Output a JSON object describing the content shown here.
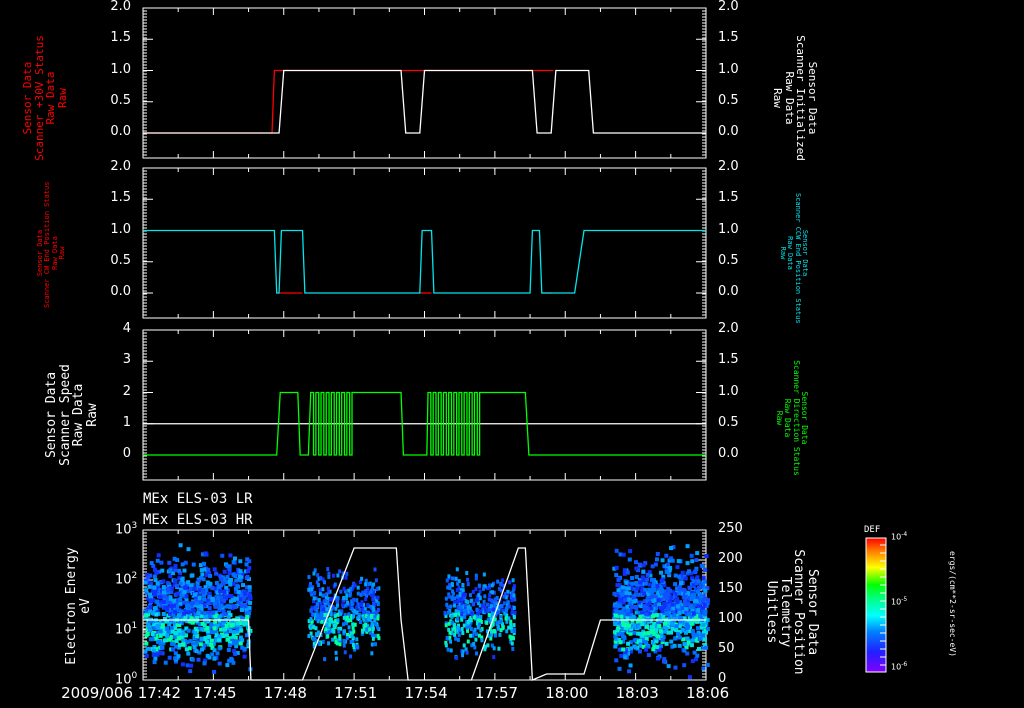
{
  "chart_data": [
    {
      "type": "line",
      "panel": 1,
      "left_ylabel": "Sensor Data\nScanner +30V Status\nRaw Data\nRaw",
      "left_ylabel_color": "#ff0000",
      "right_ylabel": "Sensor Data\nScanner Initialized\nRaw Data\nRaw",
      "right_ylabel_color": "#ffffff",
      "left_ylim": [
        -0.4,
        2.0
      ],
      "right_ylim": [
        -0.4,
        2.0
      ],
      "left_ticks": [
        "2.0",
        "1.5",
        "1.0",
        "0.5",
        "0.0"
      ],
      "right_ticks": [
        "2.0",
        "1.5",
        "1.0",
        "0.5",
        "0.0"
      ],
      "series": [
        {
          "name": "Scanner +30V Status",
          "color": "#ff0000",
          "x": [
            "17:42",
            "17:47.5",
            "17:47.6",
            "17:53.1",
            "17:53.8",
            "17:58.7",
            "17:59.5"
          ],
          "values": [
            0,
            0,
            1,
            1,
            1,
            1,
            1
          ]
        },
        {
          "name": "Scanner Initialized",
          "color": "#ffffff",
          "x": [
            "17:42",
            "17:47.8",
            "17:48.0",
            "17:53.0",
            "17:53.2",
            "17:53.8",
            "17:54.0",
            "17:58.6",
            "17:58.8",
            "17:59.4",
            "17:59.6",
            "18:01.0",
            "18:01.2",
            "18:06"
          ],
          "values": [
            0,
            0,
            1,
            1,
            0,
            0,
            1,
            1,
            0,
            0,
            1,
            1,
            0,
            0
          ]
        }
      ]
    },
    {
      "type": "line",
      "panel": 2,
      "left_ylabel": "Sensor Data\nScanner CW End Position Status\nRaw Data\nRaw",
      "left_ylabel_color": "#ff0000",
      "right_ylabel": "Sensor Data\nScanner CCW End Position Status\nRaw Data\nRaw",
      "right_ylabel_color": "#00e5ee",
      "left_ylim": [
        -0.4,
        2.0
      ],
      "right_ylim": [
        -0.4,
        2.0
      ],
      "left_ticks": [
        "2.0",
        "1.5",
        "1.0",
        "0.5",
        "0.0"
      ],
      "right_ticks": [
        "2.0",
        "1.5",
        "1.0",
        "0.5",
        "0.0"
      ],
      "series": [
        {
          "name": "Scanner CW End Position Status",
          "color": "#ff0000",
          "x": [
            "17:47.8",
            "17:48.8",
            "17:53.8",
            "17:54.3",
            "17:59.0",
            "17:59.4"
          ],
          "values": [
            0,
            0,
            0,
            0,
            0,
            0
          ]
        },
        {
          "name": "Scanner CCW End Position Status",
          "color": "#00e5ee",
          "x": [
            "17:42",
            "17:47.6",
            "17:47.7",
            "17:47.8",
            "17:47.9",
            "17:48.8",
            "17:48.9",
            "17:53.8",
            "17:53.9",
            "17:54.3",
            "17:54.4",
            "17:58.5",
            "17:58.6",
            "17:58.9",
            "17:59.0",
            "18:00.4",
            "18:00.8",
            "18:06"
          ],
          "values": [
            1,
            1,
            0,
            0,
            1,
            1,
            0,
            0,
            1,
            1,
            0,
            0,
            1,
            1,
            0,
            0,
            1,
            1
          ]
        }
      ]
    },
    {
      "type": "line",
      "panel": 3,
      "left_ylabel": "Sensor Data\nScanner Speed\nRaw Data\nRaw",
      "left_ylabel_color": "#ffffff",
      "right_ylabel": "Sensor Data\nScanner Direction Status\nRaw Data\nRaw",
      "right_ylabel_color": "#00ff00",
      "left_ylim": [
        -0.8,
        4
      ],
      "right_ylim": [
        -0.4,
        2.0
      ],
      "left_ticks": [
        "4",
        "3",
        "2",
        "1",
        "0"
      ],
      "right_ticks": [
        "2.0",
        "1.5",
        "1.0",
        "0.5",
        "0.0"
      ],
      "series": [
        {
          "name": "Scanner Speed",
          "color": "#ffffff",
          "x": [
            "17:42",
            "18:06"
          ],
          "values": [
            1,
            1
          ]
        },
        {
          "name": "Scanner Direction Status",
          "color": "#00ff00",
          "x": [
            "17:42",
            "17:47.7",
            "17:48.0",
            "17:48.5",
            "17:48.6",
            "17:49.1",
            "17:49.2",
            "17:51.0",
            "17:51.1",
            "17:53.0",
            "17:53.3",
            "17:54.1",
            "17:54.3",
            "17:56.4",
            "17:56.5",
            "17:58.3",
            "17:58.4",
            "18:06"
          ],
          "values": [
            0,
            0,
            1,
            1,
            0,
            0,
            1,
            "osc",
            1,
            1,
            0,
            0,
            1,
            "osc",
            1,
            1,
            0,
            0
          ]
        }
      ]
    },
    {
      "type": "heatmap",
      "panel": 4,
      "titles": [
        "MEx ELS-03 LR",
        "MEx ELS-03 HR"
      ],
      "left_ylabel": "Electron Energy\neV",
      "right_ylabel": "Sensor Data\nScanner Position\nTelemetry\nUnitless",
      "left_yscale": "log",
      "left_ylim": [
        1,
        1000
      ],
      "left_ticks": [
        "10^3",
        "10^2",
        "10^1",
        "10^0"
      ],
      "right_ylim": [
        0,
        250
      ],
      "right_ticks": [
        "250",
        "200",
        "150",
        "100",
        "50",
        "0"
      ],
      "colorbar": {
        "label": "DEF",
        "units": "ergs/(cm**2-sr-sec-eV)",
        "ticks": [
          "10^-4",
          "10^-5",
          "10^-6"
        ]
      },
      "data_blocks": [
        {
          "t_start": "17:42",
          "t_end": "17:46.5",
          "energy_range_eV": [
            1,
            800
          ],
          "peak_eV": 10
        },
        {
          "t_start": "17:49.0",
          "t_end": "17:52.0",
          "energy_range_eV": [
            2,
            300
          ],
          "peak_eV": 10
        },
        {
          "t_start": "17:54.8",
          "t_end": "17:57.8",
          "energy_range_eV": [
            2,
            300
          ],
          "peak_eV": 10
        },
        {
          "t_start": "18:02.0",
          "t_end": "18:06",
          "energy_range_eV": [
            1,
            700
          ],
          "peak_eV": 10
        }
      ],
      "scanner_position": {
        "color": "#ffffff",
        "x": [
          "17:42",
          "17:46.5",
          "17:46.6",
          "17:48.8",
          "17:51.0",
          "17:52.8",
          "17:53.0",
          "17:53.3",
          "17:56.0",
          "17:58.0",
          "17:58.3",
          "17:58.6",
          "17:59.2",
          "18:00.8",
          "18:01.5",
          "18:02.2",
          "18:06"
        ],
        "values": [
          100,
          100,
          0,
          0,
          220,
          220,
          100,
          0,
          0,
          220,
          220,
          0,
          10,
          10,
          100,
          100,
          100
        ]
      }
    }
  ],
  "time_axis": {
    "labels": [
      "2009/006 17:42",
      "17:45",
      "17:48",
      "17:51",
      "17:54",
      "17:57",
      "18:00",
      "18:03",
      "18:06"
    ]
  },
  "panel4_titles": {
    "lr": "MEx ELS-03 LR",
    "hr": "MEx ELS-03 HR"
  },
  "labels": {
    "p1_left": [
      "Sensor Data",
      "Scanner +30V Status",
      "Raw Data",
      "Raw"
    ],
    "p1_right": [
      "Sensor Data",
      "Scanner Initialized",
      "Raw Data",
      "Raw"
    ],
    "p2_left": [
      "Sensor Data",
      "Scanner CW End Position Status",
      "Raw Data",
      "Raw"
    ],
    "p2_right": [
      "Sensor Data",
      "Scanner CCW End Position Status",
      "Raw Data",
      "Raw"
    ],
    "p3_left": [
      "Sensor Data",
      "Scanner Speed",
      "Raw Data",
      "Raw"
    ],
    "p3_right": [
      "Sensor Data",
      "Scanner Direction Status",
      "Raw Data",
      "Raw"
    ],
    "p4_left": [
      "Electron Energy",
      "eV"
    ],
    "p4_right": [
      "Sensor Data",
      "Scanner Position",
      "Telemetry",
      "Unitless"
    ]
  },
  "ticks": {
    "status": [
      "2.0",
      "1.5",
      "1.0",
      "0.5",
      "0.0"
    ],
    "speed": [
      "4",
      "3",
      "2",
      "1",
      "0"
    ],
    "energy_exp": [
      "3",
      "2",
      "1",
      "0"
    ],
    "position": [
      "250",
      "200",
      "150",
      "100",
      "50",
      "0"
    ]
  },
  "colorbar": {
    "label": "DEF",
    "units": "ergs/(cm**2-sr-sec-eV)",
    "ticks": [
      "10",
      "10",
      "10"
    ],
    "exps": [
      "-4",
      "-5",
      "-6"
    ]
  }
}
